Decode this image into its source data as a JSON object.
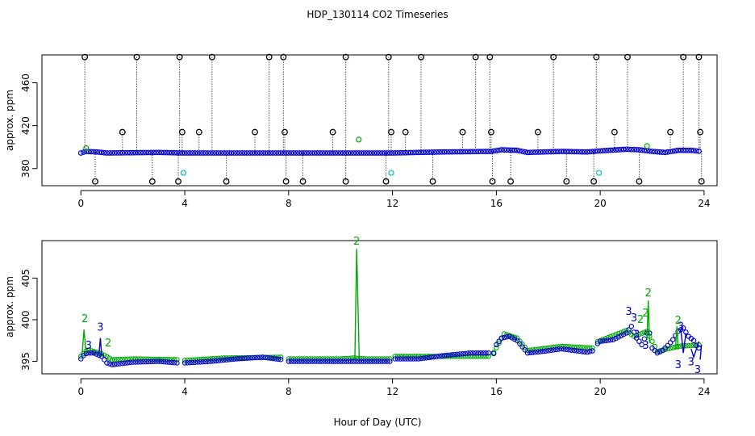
{
  "title": "HDP_130114  CO2 Timeseries",
  "colors": {
    "black": "#000000",
    "blue": "#0000cc",
    "green": "#00aa00",
    "cyan": "#00bbbb"
  },
  "chart_data": [
    {
      "type": "scatter",
      "panel": "top",
      "xlabel": "",
      "ylabel": "approx. ppm",
      "xlim": [
        -1.5,
        24.5
      ],
      "ylim": [
        364,
        486
      ],
      "xticks": [
        0,
        4,
        8,
        12,
        16,
        20,
        24
      ],
      "yticks": [
        380,
        420,
        460
      ],
      "spike_top": 484,
      "spike_bottom": 368,
      "spikes_up": [
        0.15,
        1.6,
        2.15,
        3.8,
        3.9,
        4.55,
        5.05,
        6.7,
        7.25,
        7.8,
        7.85,
        9.7,
        10.2,
        11.85,
        11.95,
        12.5,
        13.1,
        14.7,
        15.2,
        15.75,
        15.8,
        17.6,
        18.2,
        19.85,
        20.55,
        21.05,
        22.7,
        23.2,
        23.8,
        23.85
      ],
      "spike_up_tops": [
        484,
        414,
        484,
        484,
        414,
        414,
        484,
        414,
        484,
        484,
        414,
        414,
        484,
        484,
        414,
        414,
        484,
        414,
        484,
        484,
        414,
        414,
        484,
        484,
        414,
        484,
        414,
        484,
        484,
        414
      ],
      "spikes_down": [
        0.55,
        2.75,
        3.75,
        5.6,
        7.9,
        8.55,
        10.2,
        11.75,
        13.55,
        15.85,
        16.55,
        18.7,
        19.75,
        21.5,
        23.9
      ],
      "cyan_points": [
        [
          3.95,
          376
        ],
        [
          11.95,
          376
        ],
        [
          19.95,
          376
        ]
      ],
      "green_points": [
        [
          0.2,
          399
        ],
        [
          10.7,
          407
        ],
        [
          21.8,
          401
        ]
      ],
      "baseline": [
        [
          0,
          394.5
        ],
        [
          0.2,
          396
        ],
        [
          0.6,
          395.5
        ],
        [
          1,
          394.5
        ],
        [
          3,
          395
        ],
        [
          4,
          394.5
        ],
        [
          8,
          394.5
        ],
        [
          12,
          394.5
        ],
        [
          14,
          395.5
        ],
        [
          15.8,
          396
        ],
        [
          16.2,
          397.5
        ],
        [
          16.8,
          397
        ],
        [
          17.2,
          395
        ],
        [
          18.5,
          396
        ],
        [
          19.5,
          395.5
        ],
        [
          20,
          396.5
        ],
        [
          21,
          398
        ],
        [
          21.5,
          397.5
        ],
        [
          22,
          396
        ],
        [
          22.5,
          395
        ],
        [
          23,
          397
        ],
        [
          23.5,
          397
        ],
        [
          23.9,
          396
        ]
      ]
    },
    {
      "type": "scatter",
      "panel": "bottom",
      "xlabel": "Hour of Day (UTC)",
      "ylabel": "approx. ppm",
      "xlim": [
        -1.5,
        24.5
      ],
      "ylim": [
        393.5,
        409.5
      ],
      "xticks": [
        0,
        4,
        8,
        12,
        16,
        20,
        24
      ],
      "yticks": [
        395,
        400,
        405
      ],
      "gaps": [
        [
          3.75,
          3.95
        ],
        [
          7.75,
          7.95
        ],
        [
          11.95,
          12.05
        ],
        [
          15.75,
          15.85
        ],
        [
          19.75,
          19.85
        ]
      ],
      "series": [
        {
          "name": "blue",
          "marker": "o",
          "points": [
            [
              0,
              395.3
            ],
            [
              0.15,
              395.9
            ],
            [
              0.3,
              396
            ],
            [
              0.5,
              396
            ],
            [
              0.8,
              395.6
            ],
            [
              1,
              394.8
            ],
            [
              1.2,
              394.6
            ],
            [
              2,
              394.9
            ],
            [
              3,
              395
            ],
            [
              3.75,
              394.8
            ],
            [
              3.95,
              394.8
            ],
            [
              5,
              395
            ],
            [
              6,
              395.3
            ],
            [
              7,
              395.5
            ],
            [
              7.75,
              395.2
            ],
            [
              7.95,
              395
            ],
            [
              9,
              395
            ],
            [
              10,
              395
            ],
            [
              11,
              395
            ],
            [
              11.95,
              395
            ],
            [
              12.05,
              395.3
            ],
            [
              13,
              395.3
            ],
            [
              14,
              395.7
            ],
            [
              15,
              396
            ],
            [
              15.7,
              396
            ],
            [
              15.75,
              395.2
            ],
            [
              15.85,
              395.4
            ],
            [
              16,
              397
            ],
            [
              16.2,
              397.8
            ],
            [
              16.5,
              398
            ],
            [
              16.8,
              397.5
            ],
            [
              17.2,
              396
            ],
            [
              17.8,
              396.2
            ],
            [
              18.5,
              396.5
            ],
            [
              19,
              396.3
            ],
            [
              19.5,
              396.1
            ],
            [
              19.75,
              396.3
            ],
            [
              19.85,
              397
            ],
            [
              20,
              397.4
            ],
            [
              20.5,
              397.6
            ],
            [
              21,
              398.4
            ],
            [
              21.2,
              399.2
            ],
            [
              21.4,
              397.8
            ],
            [
              21.6,
              397
            ],
            [
              21.8,
              398.4
            ],
            [
              21.9,
              398.4
            ],
            [
              22,
              396.6
            ],
            [
              22.2,
              396
            ],
            [
              22.4,
              396.3
            ],
            [
              22.6,
              396.9
            ],
            [
              22.8,
              397.6
            ],
            [
              23,
              398.6
            ],
            [
              23.2,
              399
            ],
            [
              23.4,
              398
            ],
            [
              23.6,
              397.5
            ],
            [
              23.7,
              396.9
            ],
            [
              23.8,
              396.6
            ],
            [
              23.9,
              396.8
            ]
          ]
        },
        {
          "name": "green",
          "marker": "o",
          "points": [
            [
              0,
              395.6
            ],
            [
              0.25,
              396.4
            ],
            [
              0.5,
              396.2
            ],
            [
              0.8,
              395.9
            ],
            [
              1.2,
              395.2
            ],
            [
              2,
              395.3
            ],
            [
              3.75,
              395.2
            ],
            [
              3.95,
              395.1
            ],
            [
              5.5,
              395.4
            ],
            [
              7.75,
              395.5
            ],
            [
              7.95,
              395.3
            ],
            [
              10,
              395.3
            ],
            [
              10.5,
              395.4
            ],
            [
              11,
              395.3
            ],
            [
              11.95,
              395.3
            ],
            [
              12.05,
              395.6
            ],
            [
              15.75,
              395.6
            ],
            [
              15.85,
              395.8
            ],
            [
              16.3,
              398.3
            ],
            [
              16.8,
              397.8
            ],
            [
              17.2,
              396.3
            ],
            [
              18.5,
              396.8
            ],
            [
              19.75,
              396.6
            ],
            [
              19.85,
              397.3
            ],
            [
              21,
              398.7
            ],
            [
              21.3,
              398
            ],
            [
              21.8,
              398.6
            ],
            [
              22.2,
              396.2
            ],
            [
              23,
              396.8
            ],
            [
              23.9,
              397
            ]
          ]
        }
      ],
      "lines": [
        {
          "name": "green",
          "points": [
            [
              0.05,
              396
            ],
            [
              0.12,
              398.8
            ],
            [
              0.2,
              396
            ],
            [
              10.55,
              395.2
            ],
            [
              10.62,
              408.5
            ],
            [
              10.72,
              395.3
            ],
            [
              21.8,
              397.6
            ],
            [
              21.85,
              402.3
            ],
            [
              21.9,
              397.2
            ],
            [
              22.9,
              396.5
            ],
            [
              22.95,
              399.2
            ],
            [
              23,
              396.4
            ]
          ]
        },
        {
          "name": "blue",
          "points": [
            [
              0.7,
              396
            ],
            [
              0.75,
              397.8
            ],
            [
              0.8,
              395.8
            ],
            [
              23.1,
              398.9
            ],
            [
              23.2,
              396
            ],
            [
              23.3,
              398.4
            ],
            [
              23.5,
              396.5
            ],
            [
              23.6,
              395.5
            ],
            [
              23.8,
              397.4
            ],
            [
              23.85,
              395.2
            ],
            [
              23.9,
              397
            ]
          ]
        }
      ],
      "labels": [
        {
          "text": "2",
          "color": "green",
          "x": 0.15,
          "y": 399.7
        },
        {
          "text": "2",
          "color": "green",
          "x": 1.05,
          "y": 396.8
        },
        {
          "text": "3",
          "color": "blue",
          "x": 0.75,
          "y": 398.7
        },
        {
          "text": "3",
          "color": "blue",
          "x": 0.3,
          "y": 396.5
        },
        {
          "text": "2",
          "color": "green",
          "x": 10.62,
          "y": 409.0
        },
        {
          "text": "3",
          "color": "blue",
          "x": 21.1,
          "y": 400.6
        },
        {
          "text": "3",
          "color": "blue",
          "x": 21.3,
          "y": 399.8
        },
        {
          "text": "2",
          "color": "green",
          "x": 21.55,
          "y": 399.6
        },
        {
          "text": "2",
          "color": "green",
          "x": 21.75,
          "y": 400.4
        },
        {
          "text": "2",
          "color": "green",
          "x": 21.85,
          "y": 402.8
        },
        {
          "text": "3",
          "color": "blue",
          "x": 21.4,
          "y": 397.8
        },
        {
          "text": "3",
          "color": "blue",
          "x": 21.75,
          "y": 396.5
        },
        {
          "text": "2",
          "color": "green",
          "x": 23.0,
          "y": 399.5
        },
        {
          "text": "3",
          "color": "blue",
          "x": 23.1,
          "y": 398.8
        },
        {
          "text": "3",
          "color": "blue",
          "x": 23.0,
          "y": 394.2
        },
        {
          "text": "3",
          "color": "blue",
          "x": 23.5,
          "y": 394.5
        },
        {
          "text": "3",
          "color": "blue",
          "x": 23.75,
          "y": 393.6
        }
      ]
    }
  ]
}
